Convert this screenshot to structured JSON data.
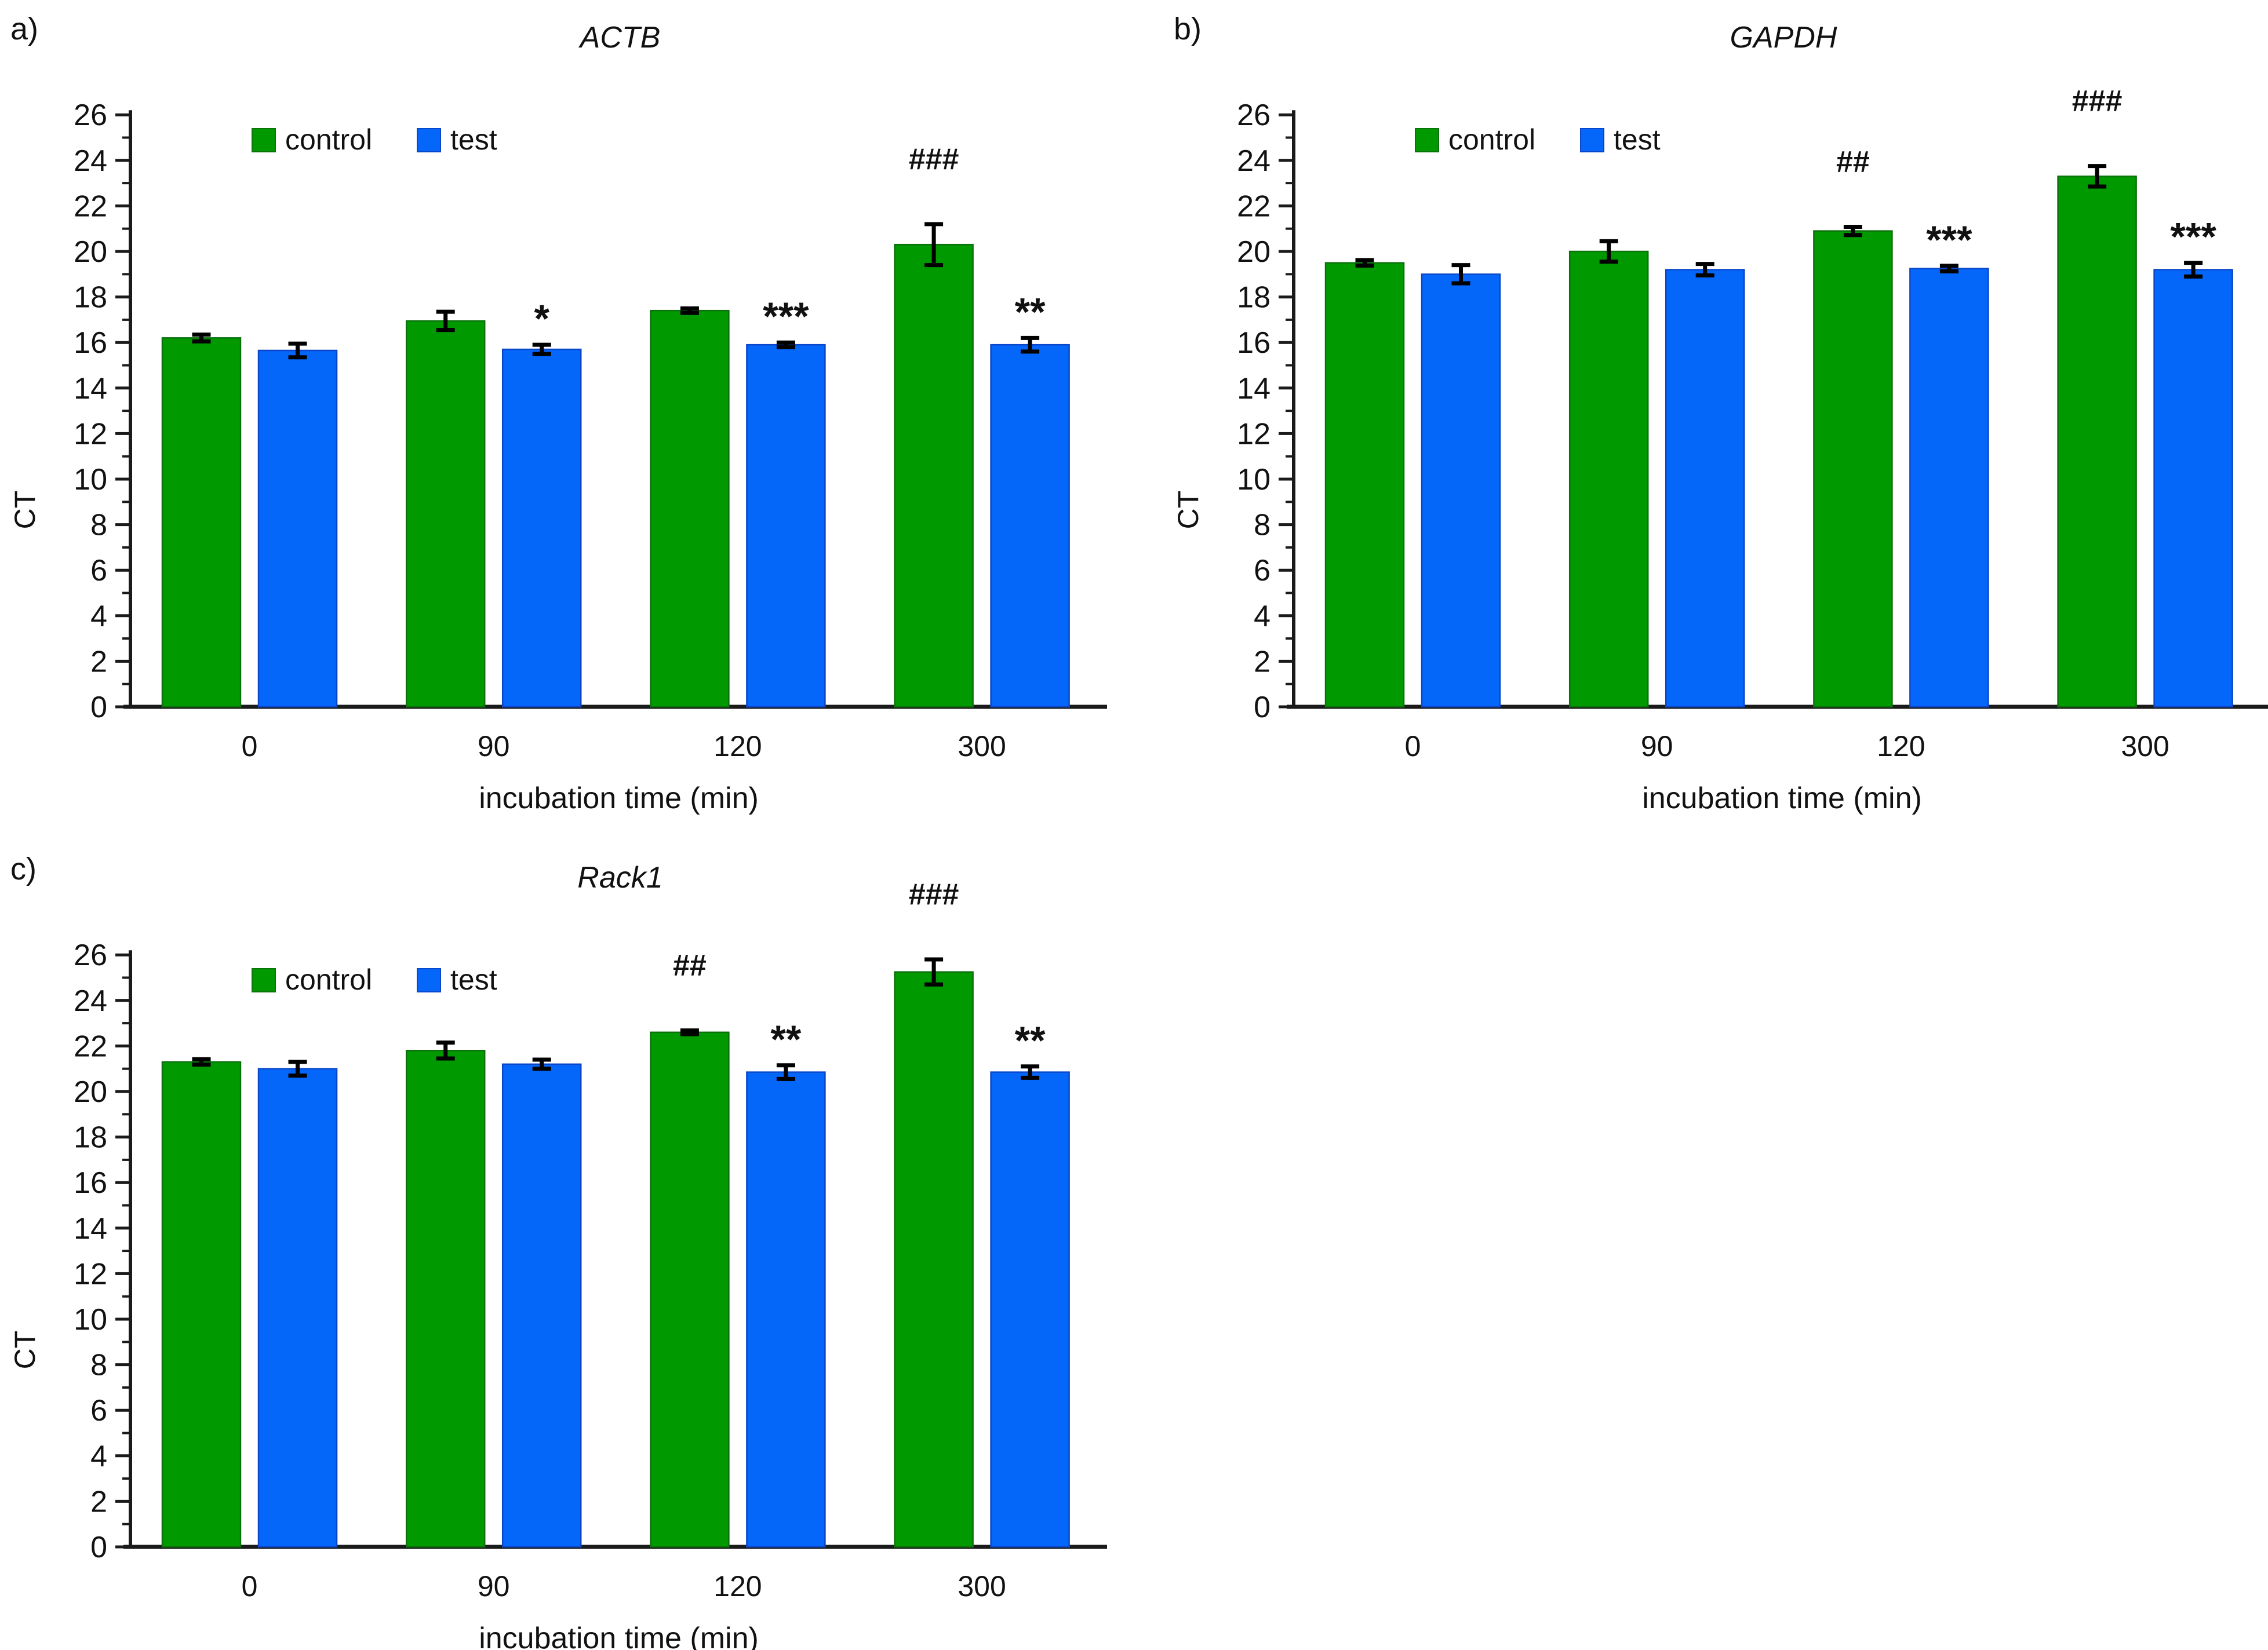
{
  "figure": {
    "background": "#ffffff"
  },
  "colors": {
    "control_fill": "#009A00",
    "control_border": "#0B720B",
    "test_fill": "#0566FA",
    "test_border": "#0A47C8",
    "error_bar": "#000000",
    "axis": "#1a1a1a",
    "text": "#111111"
  },
  "legend": {
    "control_label": "control",
    "test_label": "test",
    "position": "top-left-inside"
  },
  "axes": {
    "ylabel": "CT",
    "xlabel": "incubation time (min)",
    "ymin": 0,
    "ymax": 26,
    "ytick_major_step": 2,
    "ytick_minor_step": 1,
    "grid": "off"
  },
  "chart_data": [
    {
      "id": "a",
      "panel_label": "a)",
      "title": "ACTB",
      "type": "bar",
      "categories": [
        "0",
        "90",
        "120",
        "300"
      ],
      "xlabel": "incubation time (min)",
      "ylabel": "CT",
      "ylim": [
        0,
        26
      ],
      "legend_position": "top-left-inside",
      "series": [
        {
          "name": "control",
          "values": [
            16.2,
            16.95,
            17.4,
            20.3
          ],
          "errors": [
            0.15,
            0.4,
            0.1,
            0.9
          ],
          "annotations": [
            "",
            "",
            "",
            "###"
          ]
        },
        {
          "name": "test",
          "values": [
            15.65,
            15.7,
            15.9,
            15.9
          ],
          "errors": [
            0.3,
            0.2,
            0.1,
            0.3
          ],
          "annotations": [
            "",
            "*",
            "***",
            "**"
          ]
        }
      ]
    },
    {
      "id": "b",
      "panel_label": "b)",
      "title": "GAPDH",
      "type": "bar",
      "categories": [
        "0",
        "90",
        "120",
        "300"
      ],
      "xlabel": "incubation time (min)",
      "ylabel": "CT",
      "ylim": [
        0,
        26
      ],
      "legend_position": "top-left-inside",
      "series": [
        {
          "name": "control",
          "values": [
            19.5,
            20.0,
            20.9,
            23.3
          ],
          "errors": [
            0.12,
            0.45,
            0.18,
            0.45
          ],
          "annotations": [
            "",
            "",
            "##",
            "###"
          ]
        },
        {
          "name": "test",
          "values": [
            19.0,
            19.2,
            19.25,
            19.2
          ],
          "errors": [
            0.4,
            0.25,
            0.12,
            0.3
          ],
          "annotations": [
            "",
            "",
            "***",
            "***"
          ]
        }
      ]
    },
    {
      "id": "c",
      "panel_label": "c)",
      "title": "Rack1",
      "type": "bar",
      "categories": [
        "0",
        "90",
        "120",
        "300"
      ],
      "xlabel": "incubation time (min)",
      "ylabel": "CT",
      "ylim": [
        0,
        26
      ],
      "legend_position": "top-left-inside",
      "series": [
        {
          "name": "control",
          "values": [
            21.3,
            21.8,
            22.6,
            25.25
          ],
          "errors": [
            0.12,
            0.35,
            0.08,
            0.55
          ],
          "annotations": [
            "",
            "",
            "##",
            "###"
          ]
        },
        {
          "name": "test",
          "values": [
            21.0,
            21.2,
            20.85,
            20.85
          ],
          "errors": [
            0.3,
            0.2,
            0.3,
            0.25
          ],
          "annotations": [
            "",
            "",
            "**",
            "**"
          ]
        }
      ]
    }
  ]
}
